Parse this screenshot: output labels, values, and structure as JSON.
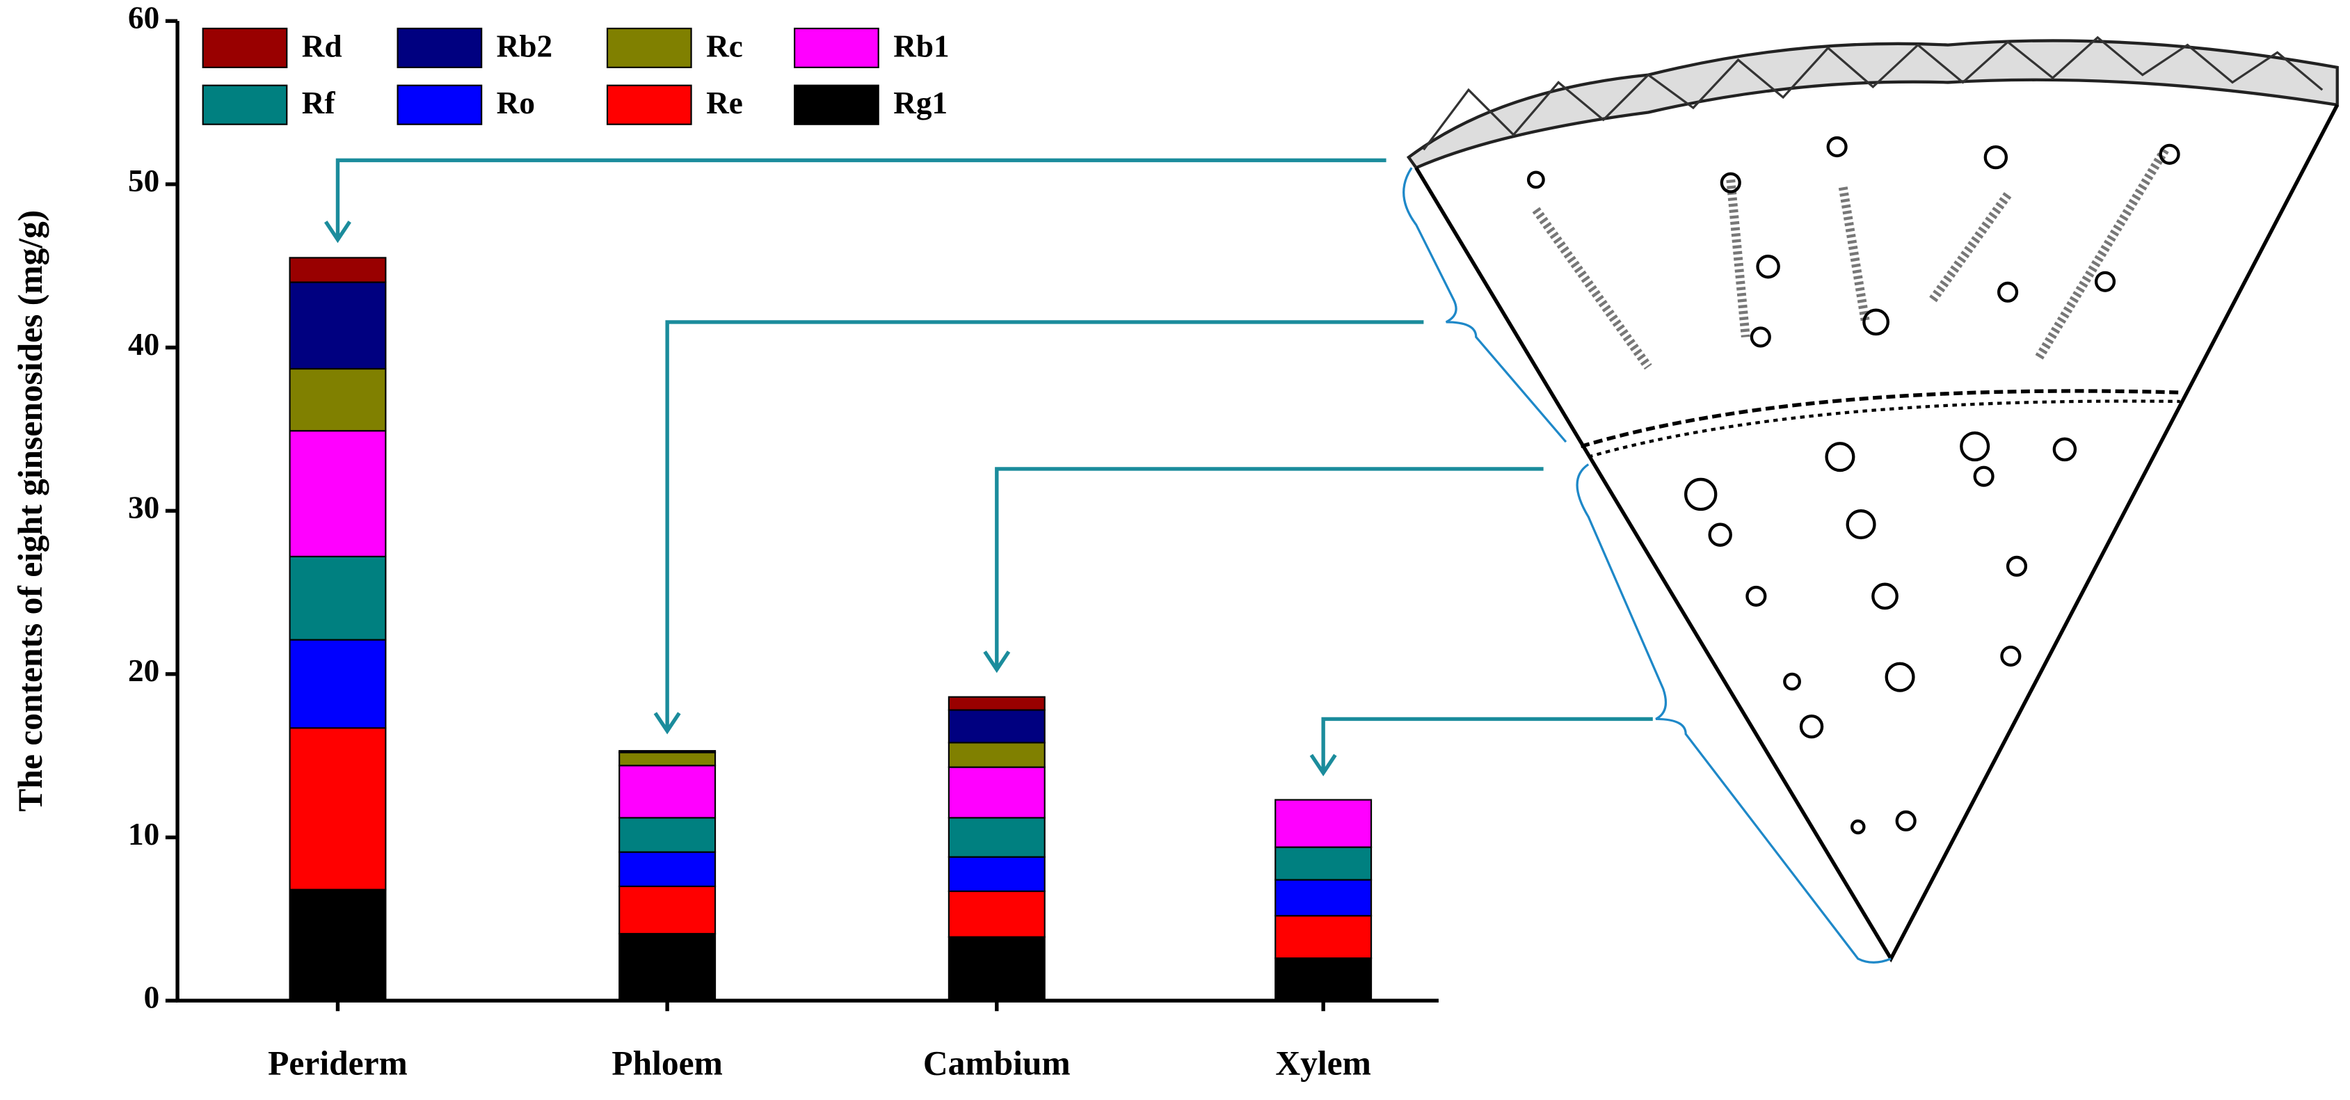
{
  "chart_data": {
    "type": "stacked-bar",
    "ylabel": "The contents of eight ginsenosides (mg/g)",
    "categories": [
      "Periderm",
      "Phloem",
      "Cambium",
      "Xylem"
    ],
    "series": [
      {
        "name": "Rg1",
        "color": "#000000",
        "values": [
          6.8,
          4.1,
          3.9,
          2.6
        ]
      },
      {
        "name": "Re",
        "color": "#ff0000",
        "values": [
          9.9,
          2.9,
          2.8,
          2.6
        ]
      },
      {
        "name": "Ro",
        "color": "#0000ff",
        "values": [
          5.4,
          2.1,
          2.1,
          2.2
        ]
      },
      {
        "name": "Rf",
        "color": "#008080",
        "values": [
          5.1,
          2.1,
          2.4,
          2.0
        ]
      },
      {
        "name": "Rb1",
        "color": "#ff00ff",
        "values": [
          7.7,
          3.2,
          3.1,
          2.9
        ]
      },
      {
        "name": "Rc",
        "color": "#808000",
        "values": [
          3.8,
          0.8,
          1.5,
          0
        ]
      },
      {
        "name": "Rb2",
        "color": "#000080",
        "values": [
          5.3,
          0.1,
          2.0,
          0
        ]
      },
      {
        "name": "Rd",
        "color": "#990000",
        "values": [
          1.5,
          0,
          0.8,
          0
        ]
      }
    ],
    "ylim": [
      0,
      60
    ],
    "yticks": [
      0,
      10,
      20,
      30,
      40,
      50,
      60
    ]
  }
}
